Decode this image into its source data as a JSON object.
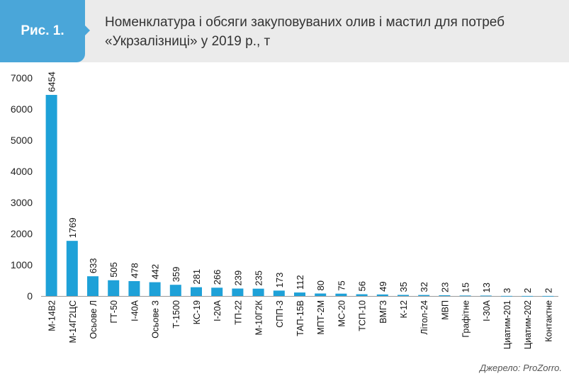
{
  "header": {
    "badge": "Рис. 1.",
    "title_line1": "Номенклатура і обсяги закуповуваних олив і мастил для потреб",
    "title_line2": "«Укрзалізниці» у 2019 р., т"
  },
  "source": "Джерело: ProZorro.",
  "colors": {
    "bar": "#1ea1d8",
    "header_bg": "#ebebeb",
    "badge_bg": "#4aa6d9"
  },
  "chart_data": {
    "type": "bar",
    "categories": [
      "М-14В2",
      "М-14Г2ЦС",
      "Осьове Л",
      "ГТ-50",
      "І-40А",
      "Осьове З",
      "Т-1500",
      "КС-19",
      "І-20А",
      "ТП-22",
      "М-10Г2К",
      "СПП-З",
      "ТАП-15В",
      "МПТ-2М",
      "МС-20",
      "ТСП-10",
      "ВМГЗ",
      "К-12",
      "Літол-24",
      "МВП",
      "Графітне",
      "І-30А",
      "Циатим-201",
      "Циатим-202",
      "Контактне"
    ],
    "values": [
      6454,
      1769,
      633,
      505,
      478,
      442,
      359,
      281,
      266,
      239,
      235,
      173,
      112,
      80,
      75,
      56,
      49,
      35,
      32,
      23,
      15,
      13,
      3,
      2,
      2
    ],
    "data_labels": [
      "6454",
      "1769",
      "633",
      "505",
      "478",
      "442",
      "359",
      "281",
      "266",
      "239",
      "235",
      "173",
      "112",
      "80",
      "75",
      "56",
      "49",
      "35",
      "32",
      "23",
      "15",
      "13",
      "3",
      "2",
      "2"
    ],
    "yticks": [
      "0",
      "1000",
      "2000",
      "3000",
      "4000",
      "5000",
      "6000",
      "7000"
    ],
    "ylim": [
      0,
      7000
    ],
    "xlabel": "",
    "ylabel": "",
    "grid": false,
    "legend": "none"
  }
}
